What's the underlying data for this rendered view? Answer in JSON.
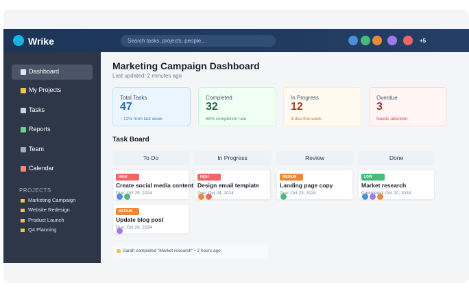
{
  "header": {
    "logo": "Wrike",
    "search_placeholder": "Search tasks, projects, people...",
    "more_users": "+5"
  },
  "sidebar": {
    "nav": [
      "Dashboard",
      "My Projects",
      "Tasks",
      "Reports",
      "Team",
      "Calendar"
    ],
    "projects_heading": "PROJECTS",
    "projects": [
      "Marketing Campaign",
      "Website Redesign",
      "Product Launch",
      "Q4 Planning"
    ]
  },
  "main": {
    "title": "Marketing Campaign Dashboard",
    "subtitle": "Last updated: 2 minutes ago",
    "stats": [
      {
        "label": "Total Tasks",
        "value": "47",
        "note": "↑ 12% from last week"
      },
      {
        "label": "Completed",
        "value": "32",
        "note": "68% completion rate"
      },
      {
        "label": "In Progress",
        "value": "12",
        "note": "3 due this week"
      },
      {
        "label": "Overdue",
        "value": "3",
        "note": "Needs attention"
      }
    ],
    "board_title": "Task Board",
    "columns": [
      {
        "name": "To Do",
        "cards": [
          {
            "priority": "HIGH",
            "title": "Create social media content",
            "due": "Due: Oct 25, 2024"
          },
          {
            "priority": "MEDIUM",
            "title": "Update blog post",
            "due": "Due: Oct 28, 2024"
          }
        ]
      },
      {
        "name": "In Progress",
        "cards": [
          {
            "priority": "HIGH",
            "title": "Design email template",
            "due": "Due: Oct 24, 2024"
          }
        ]
      },
      {
        "name": "Review",
        "cards": [
          {
            "priority": "MEDIUM",
            "title": "Landing page copy",
            "due": "Due: Oct 23, 2024"
          }
        ]
      },
      {
        "name": "Done",
        "cards": [
          {
            "priority": "LOW",
            "title": "Market research",
            "due": "Completed: Oct 20, 2024"
          }
        ]
      }
    ],
    "activity": "Sarah completed \"Market research\" • 2 hours ago"
  }
}
